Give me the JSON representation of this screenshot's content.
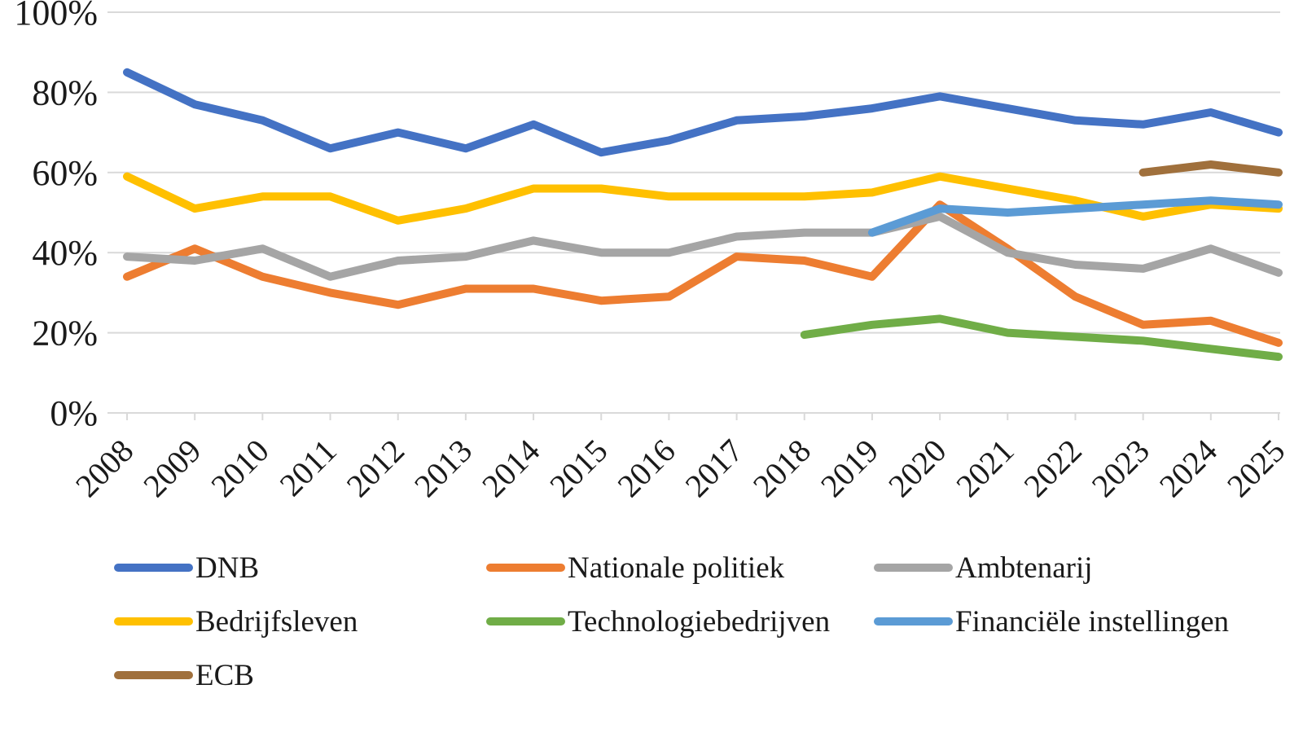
{
  "chart_data": {
    "type": "line",
    "title": "",
    "xlabel": "",
    "ylabel": "",
    "x_categories": [
      "2008",
      "2009",
      "2010",
      "2011",
      "2012",
      "2013",
      "2014",
      "2015",
      "2016",
      "2017",
      "2018",
      "2019",
      "2020",
      "2021",
      "2022",
      "2023",
      "2024",
      "2025"
    ],
    "y_axis": {
      "min": 0,
      "max": 100,
      "tick_step": 20,
      "tick_labels": [
        "0%",
        "20%",
        "40%",
        "60%",
        "80%",
        "100%"
      ],
      "format": "percent"
    },
    "grid": true,
    "gridline_color": "#D9D9D9",
    "legend_position": "bottom",
    "series": [
      {
        "name": "DNB",
        "color": "#4472C4",
        "values": [
          85,
          77,
          73,
          66,
          70,
          66,
          72,
          65,
          68,
          73,
          74,
          76,
          79,
          76,
          73,
          72,
          75,
          70
        ]
      },
      {
        "name": "Nationale politiek",
        "color": "#ED7D31",
        "values": [
          34,
          41,
          34,
          30,
          27,
          31,
          31,
          28,
          29,
          39,
          38,
          34,
          52,
          41,
          29,
          22,
          23,
          17.5
        ]
      },
      {
        "name": "Ambtenarij",
        "color": "#A5A5A5",
        "values": [
          39,
          38,
          41,
          34,
          38,
          39,
          43,
          40,
          40,
          44,
          45,
          45,
          49,
          40,
          37,
          36,
          41,
          35
        ]
      },
      {
        "name": "Bedrijfsleven",
        "color": "#FFC000",
        "values": [
          59,
          51,
          54,
          54,
          48,
          51,
          56,
          56,
          54,
          54,
          54,
          55,
          59,
          56,
          53,
          49,
          52,
          51
        ]
      },
      {
        "name": "Technologiebedrijven",
        "color": "#70AD47",
        "values": [
          null,
          null,
          null,
          null,
          null,
          null,
          null,
          null,
          null,
          null,
          19.5,
          22,
          23.5,
          20,
          19,
          18,
          16,
          14
        ]
      },
      {
        "name": "Financiële instellingen",
        "color": "#5B9BD5",
        "values": [
          null,
          null,
          null,
          null,
          null,
          null,
          null,
          null,
          null,
          null,
          null,
          45,
          51,
          50,
          51,
          52,
          53,
          52
        ]
      },
      {
        "name": "ECB",
        "color": "#A0703C",
        "values": [
          null,
          null,
          null,
          null,
          null,
          null,
          null,
          null,
          null,
          null,
          null,
          null,
          null,
          null,
          null,
          60,
          62,
          60
        ]
      }
    ]
  }
}
